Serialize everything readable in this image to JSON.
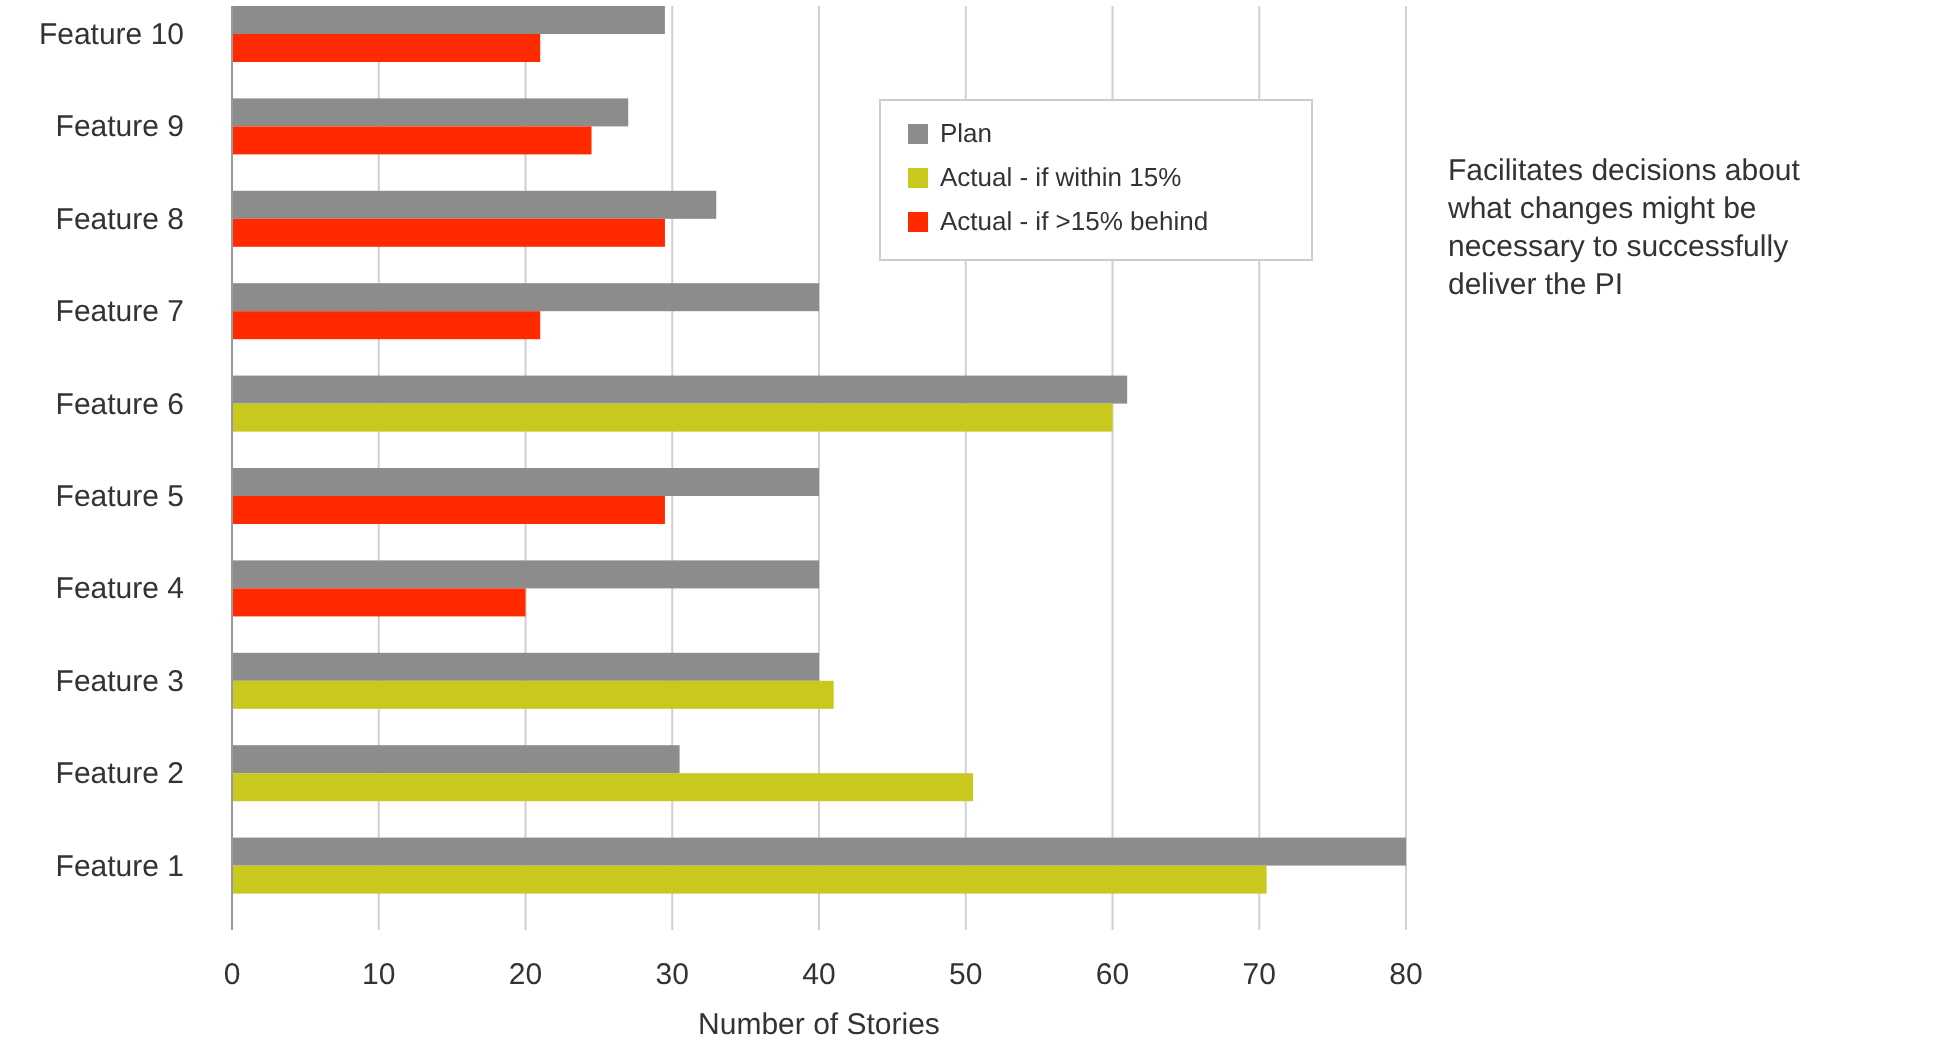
{
  "chart_data": {
    "type": "bar",
    "orientation": "horizontal",
    "xlabel": "Number of Stories",
    "categories": [
      "Feature 10",
      "Feature 9",
      "Feature 8",
      "Feature 7",
      "Feature 6",
      "Feature 5",
      "Feature 4",
      "Feature 3",
      "Feature 2",
      "Feature 1"
    ],
    "series": [
      {
        "name": "Plan",
        "color": "#8c8c8c",
        "values": [
          29.5,
          27,
          33,
          40,
          61,
          40,
          40,
          40,
          30.5,
          80
        ]
      },
      {
        "name": "Actual - if within 15%",
        "color": "#c8c81e",
        "values": [
          null,
          null,
          null,
          null,
          60,
          null,
          null,
          41,
          50.5,
          70.5
        ]
      },
      {
        "name": "Actual - if >15% behind",
        "color": "#ff2a00",
        "values": [
          21,
          24.5,
          29.5,
          21,
          null,
          29.5,
          20,
          null,
          null,
          null
        ]
      }
    ],
    "xlim": [
      0,
      80
    ],
    "xticks": [
      0,
      10,
      20,
      30,
      40,
      50,
      60,
      70,
      80
    ],
    "grid": "x",
    "legend": "top right",
    "annotations": [
      "Facilitates decisions about what changes might be necessary to successfully deliver the PI"
    ]
  }
}
